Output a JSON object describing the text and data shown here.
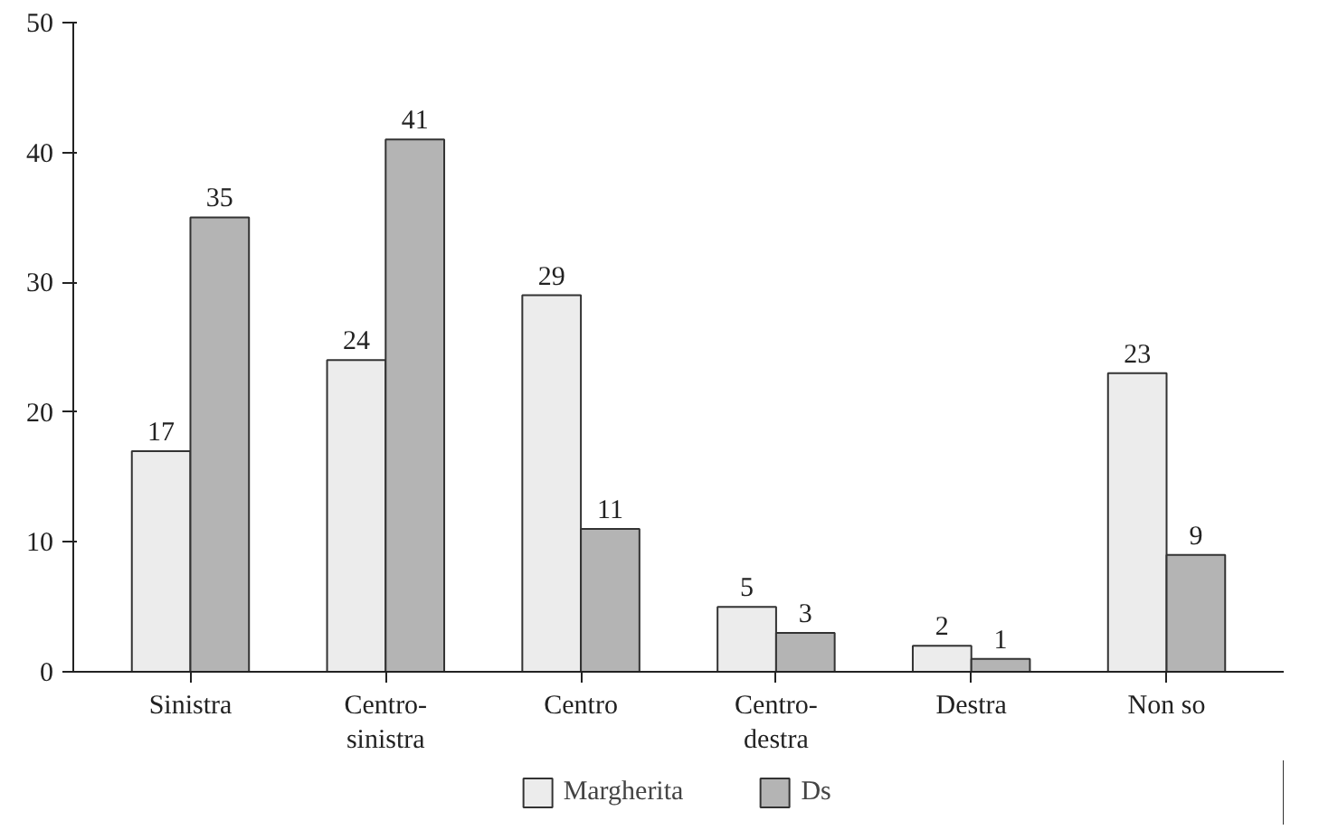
{
  "chart_data": {
    "type": "bar",
    "categories": [
      "Sinistra",
      "Centro-\nsinistra",
      "Centro",
      "Centro-\ndestra",
      "Destra",
      "Non so"
    ],
    "series": [
      {
        "name": "Margherita",
        "color": "#ececec",
        "values": [
          17,
          24,
          29,
          5,
          2,
          23
        ]
      },
      {
        "name": "Ds",
        "color": "#b4b4b4",
        "values": [
          35,
          41,
          11,
          3,
          1,
          9
        ]
      }
    ],
    "ylim": [
      0,
      50
    ],
    "yticks": [
      0,
      10,
      20,
      30,
      40,
      50
    ],
    "grid": false,
    "legend": "bottom",
    "data_labels": true
  }
}
